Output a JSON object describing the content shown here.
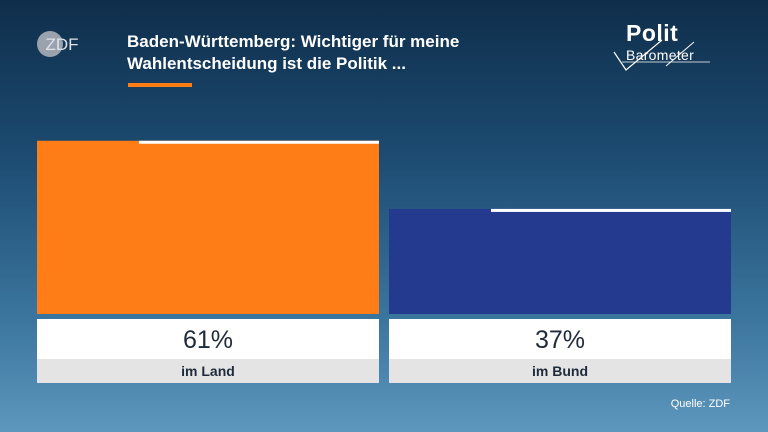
{
  "header": {
    "title_line1": "Baden-Württemberg: Wichtiger für meine",
    "title_line2": "Wahlentscheidung ist die Politik ...",
    "accent_color": "#ff7d16"
  },
  "branding": {
    "broadcaster": "ZDF",
    "program_line1": "Polit",
    "program_line2": "Barometer"
  },
  "chart_data": {
    "type": "bar",
    "title": "Baden-Württemberg: Wichtiger für meine Wahlentscheidung ist die Politik ...",
    "categories": [
      "im Land",
      "im Bund"
    ],
    "values": [
      61,
      37
    ],
    "value_labels": [
      "61%",
      "37%"
    ],
    "colors": [
      "#ff7d16",
      "#233a8e"
    ],
    "ylim": [
      0,
      100
    ],
    "xlabel": "",
    "ylabel": "",
    "grid": false,
    "legend": "none"
  },
  "footer": {
    "source": "Quelle: ZDF"
  }
}
